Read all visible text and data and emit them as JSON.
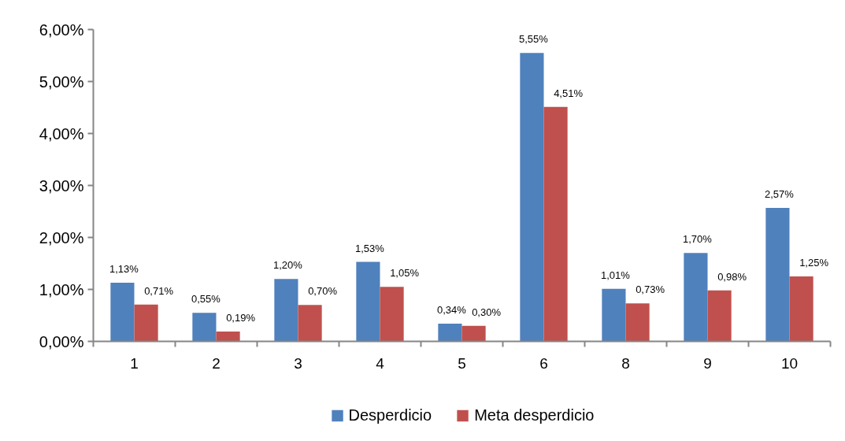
{
  "chart_data": {
    "type": "bar",
    "categories": [
      "1",
      "2",
      "3",
      "4",
      "5",
      "6",
      "8",
      "9",
      "10"
    ],
    "series": [
      {
        "name": "Desperdicio",
        "color": "#4f81bd",
        "values": [
          1.13,
          0.55,
          1.2,
          1.53,
          0.34,
          5.55,
          1.01,
          1.7,
          2.57
        ],
        "value_labels": [
          "1,13%",
          "0,55%",
          "1,20%",
          "1,53%",
          "0,34%",
          "5,55%",
          "1,01%",
          "1,70%",
          "2,57%"
        ]
      },
      {
        "name": "Meta desperdicio",
        "color": "#c0504d",
        "values": [
          0.71,
          0.19,
          0.7,
          1.05,
          0.3,
          4.51,
          0.73,
          0.98,
          1.25
        ],
        "value_labels": [
          "0,71%",
          "0,19%",
          "0,70%",
          "1,05%",
          "0,30%",
          "4,51%",
          "0,73%",
          "0,98%",
          "1,25%"
        ]
      }
    ],
    "ylim": [
      0,
      6
    ],
    "yticks": [
      {
        "value": 0,
        "label": "0,00%"
      },
      {
        "value": 1,
        "label": "1,00%"
      },
      {
        "value": 2,
        "label": "2,00%"
      },
      {
        "value": 3,
        "label": "3,00%"
      },
      {
        "value": 4,
        "label": "4,00%"
      },
      {
        "value": 5,
        "label": "5,00%"
      },
      {
        "value": 6,
        "label": "6,00%"
      }
    ],
    "grid": false,
    "legend": "bottom"
  }
}
